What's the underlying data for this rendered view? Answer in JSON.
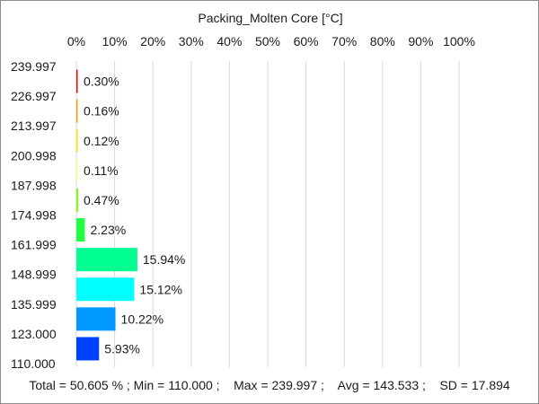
{
  "chart_data": {
    "type": "bar",
    "orientation": "horizontal",
    "title": "Packing_Molten Core [°C]",
    "x_tick_labels": [
      "0%",
      "10%",
      "20%",
      "30%",
      "40%",
      "50%",
      "60%",
      "70%",
      "80%",
      "90%",
      "100%"
    ],
    "xlim": [
      0,
      100
    ],
    "bin_edges": [
      "239.997",
      "226.997",
      "213.997",
      "200.998",
      "187.998",
      "174.998",
      "161.999",
      "148.999",
      "135.999",
      "123.000",
      "110.000"
    ],
    "bins": [
      {
        "value": 0.3,
        "label": "0.30%",
        "color": "#ff0000"
      },
      {
        "value": 0.16,
        "label": "0.16%",
        "color": "#ffa000"
      },
      {
        "value": 0.12,
        "label": "0.12%",
        "color": "#ffe000"
      },
      {
        "value": 0.11,
        "label": "0.11%",
        "color": "#ffff80"
      },
      {
        "value": 0.47,
        "label": "0.47%",
        "color": "#80ff00"
      },
      {
        "value": 2.23,
        "label": "2.23%",
        "color": "#20ff40"
      },
      {
        "value": 15.94,
        "label": "15.94%",
        "color": "#00ff90"
      },
      {
        "value": 15.12,
        "label": "15.12%",
        "color": "#00ffff"
      },
      {
        "value": 10.22,
        "label": "10.22%",
        "color": "#0099ff"
      },
      {
        "value": 5.93,
        "label": "5.93%",
        "color": "#0040ff"
      }
    ],
    "grid": true
  },
  "stats": {
    "text": "Total = 50.605 % ; Min = 110.000 ;    Max = 239.997 ;    Avg = 143.533 ;    SD = 17.894"
  }
}
